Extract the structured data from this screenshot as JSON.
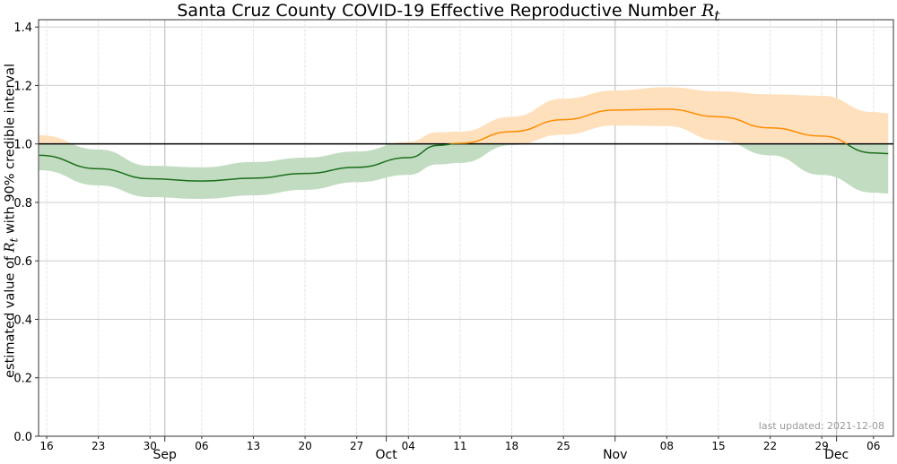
{
  "chart_data": {
    "type": "line",
    "title": "Santa Cruz County COVID-19 Effective Reproductive Number",
    "title_symbol": "R",
    "title_symbol_sub": "t",
    "ylabel_prefix": "estimated value of",
    "ylabel_symbol": "R",
    "ylabel_symbol_sub": "t",
    "ylabel_suffix": "with 90% credible interval",
    "xlim": [
      "2021-08-14.9",
      "2021-12-08.7"
    ],
    "xlim_days_from_start": [
      -1.1,
      114.7
    ],
    "start_date": "2021-08-16",
    "ylim": [
      0,
      1.425
    ],
    "yticks": [
      "0.0",
      "0.2",
      "0.4",
      "0.6",
      "0.8",
      "1.0",
      "1.2",
      "1.4"
    ],
    "ytick_values": [
      0,
      0.2,
      0.4,
      0.6,
      0.8,
      1.0,
      1.2,
      1.4
    ],
    "xticks_minor": [
      {
        "date": "2021-08-16",
        "label": "16"
      },
      {
        "date": "2021-08-23",
        "label": "23"
      },
      {
        "date": "2021-08-30",
        "label": "30"
      },
      {
        "date": "2021-09-06",
        "label": "06"
      },
      {
        "date": "2021-09-13",
        "label": "13"
      },
      {
        "date": "2021-09-20",
        "label": "20"
      },
      {
        "date": "2021-09-27",
        "label": "27"
      },
      {
        "date": "2021-10-04",
        "label": "04"
      },
      {
        "date": "2021-10-11",
        "label": "11"
      },
      {
        "date": "2021-10-18",
        "label": "18"
      },
      {
        "date": "2021-10-25",
        "label": "25"
      },
      {
        "date": "2021-11-08",
        "label": "08"
      },
      {
        "date": "2021-11-15",
        "label": "15"
      },
      {
        "date": "2021-11-22",
        "label": "22"
      },
      {
        "date": "2021-11-29",
        "label": "29"
      },
      {
        "date": "2021-12-06",
        "label": "06"
      }
    ],
    "xticks_major": [
      {
        "date": "2021-09-01",
        "label": "Sep"
      },
      {
        "date": "2021-10-01",
        "label": "Oct"
      },
      {
        "date": "2021-11-01",
        "label": "Nov"
      },
      {
        "date": "2021-12-01",
        "label": "Dec"
      }
    ],
    "reference_line": 1.0,
    "grid": true,
    "colors": {
      "above": "#ff8c00",
      "above_band": "#ffe0bd",
      "below": "#1a6e1a",
      "below_band": "#c2dcc2",
      "reference": "#000000"
    },
    "series": [
      {
        "name": "Rt median with 90% credible interval",
        "dates": [
          "2021-08-15",
          "2021-08-23",
          "2021-08-30",
          "2021-09-06",
          "2021-09-13",
          "2021-09-20",
          "2021-09-27",
          "2021-10-04",
          "2021-10-08",
          "2021-10-11",
          "2021-10-18",
          "2021-10-25",
          "2021-11-01",
          "2021-11-08",
          "2021-11-15",
          "2021-11-22",
          "2021-11-29",
          "2021-12-06",
          "2021-12-08"
        ],
        "median": [
          0.961,
          0.915,
          0.881,
          0.873,
          0.883,
          0.899,
          0.92,
          0.953,
          0.995,
          1.002,
          1.042,
          1.083,
          1.116,
          1.119,
          1.093,
          1.055,
          1.027,
          0.969,
          0.967
        ],
        "lower": [
          0.91,
          0.858,
          0.818,
          0.812,
          0.824,
          0.843,
          0.869,
          0.894,
          0.93,
          0.935,
          0.996,
          1.032,
          1.063,
          1.061,
          1.012,
          0.961,
          0.894,
          0.833,
          0.83
        ],
        "upper": [
          1.03,
          0.981,
          0.925,
          0.92,
          0.938,
          0.953,
          0.974,
          1.007,
          1.04,
          1.042,
          1.093,
          1.155,
          1.183,
          1.194,
          1.18,
          1.17,
          1.165,
          1.109,
          1.105
        ]
      }
    ],
    "annotation": "last updated: 2021-12-08"
  }
}
